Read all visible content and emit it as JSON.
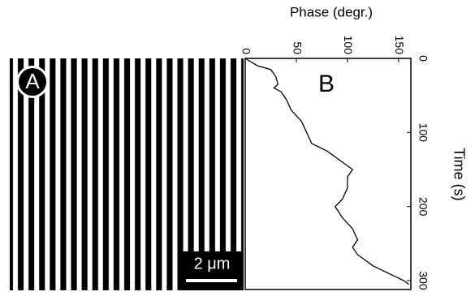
{
  "panel_a": {
    "label": "A",
    "scale_bar": "2 μm"
  },
  "chart_data": {
    "type": "line",
    "panel_label": "B",
    "x_label": "Time (s)",
    "y_label": "Phase (degr.)",
    "x": [
      0,
      10,
      15,
      25,
      35,
      40,
      45,
      55,
      70,
      85,
      100,
      115,
      125,
      140,
      150,
      160,
      175,
      190,
      200,
      215,
      230,
      245,
      255,
      265,
      280,
      290,
      300,
      305
    ],
    "series": [
      {
        "color": "#000000",
        "values": [
          0,
          12,
          25,
          30,
          32,
          28,
          35,
          40,
          45,
          55,
          60,
          65,
          80,
          95,
          105,
          100,
          100,
          95,
          88,
          95,
          105,
          110,
          105,
          110,
          125,
          140,
          155,
          160
        ]
      }
    ],
    "xlim": [
      0,
      312
    ],
    "xticks": [
      0,
      100,
      200,
      300
    ],
    "ylim": [
      0,
      162
    ],
    "yticks": [
      0,
      50,
      100,
      150
    ]
  }
}
